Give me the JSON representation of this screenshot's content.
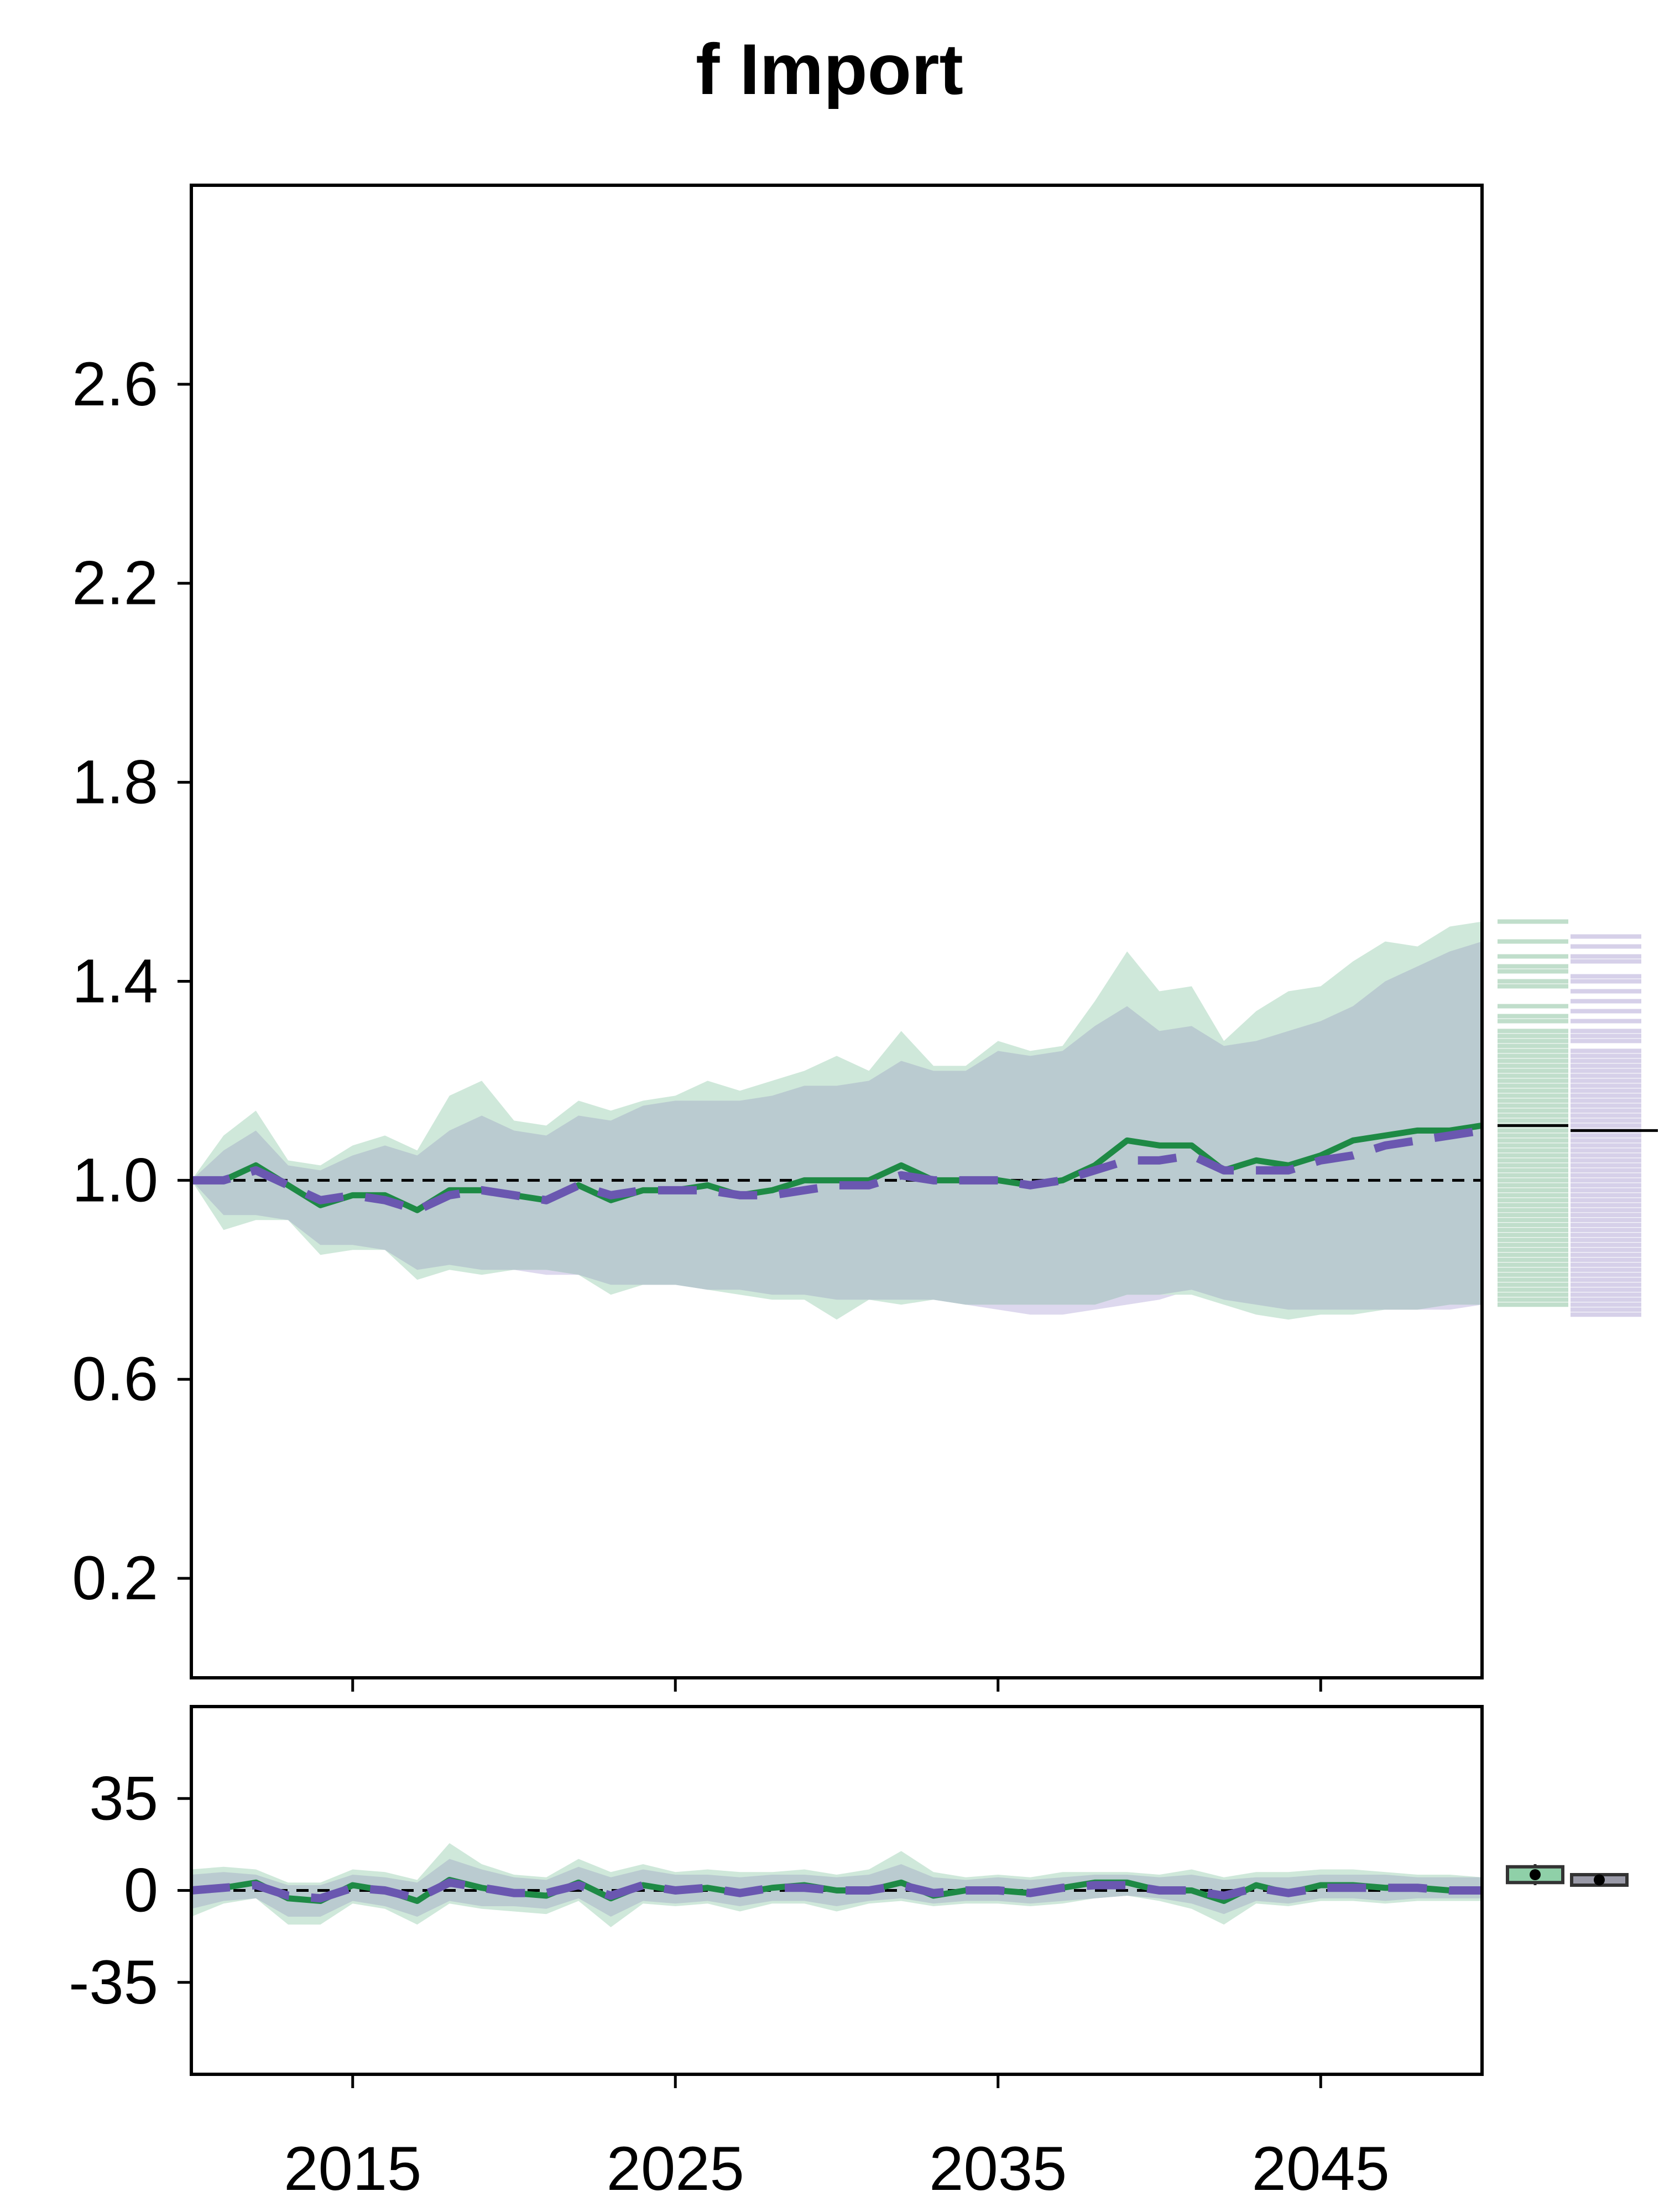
{
  "title": "f Import",
  "colors": {
    "green_line": "#1e8a45",
    "green_band": "#cfe8da",
    "purple_line": "#6a57b0",
    "purple_band": "#ddd8ee",
    "overlap_band": "#bacbd0",
    "axis": "#000000"
  },
  "chart_data": [
    {
      "type": "line",
      "panel": "main",
      "title": "f Import",
      "xlabel": "",
      "ylabel": "",
      "xlim": [
        2010,
        2050
      ],
      "ylim": [
        0.0,
        3.0
      ],
      "yticks": [
        0.2,
        0.6,
        1.0,
        1.4,
        1.8,
        2.2,
        2.6
      ],
      "ytick_labels": [
        "0.2",
        "0.6",
        "1.0",
        "1.4",
        "1.8",
        "2.2",
        "2.6"
      ],
      "xticks": [
        2015,
        2025,
        2035,
        2045
      ],
      "xtick_labels": [
        "2015",
        "2025",
        "2035",
        "2045"
      ],
      "reference_line": 1.0,
      "grid": false,
      "x": [
        2010,
        2011,
        2012,
        2013,
        2014,
        2015,
        2016,
        2017,
        2018,
        2019,
        2020,
        2021,
        2022,
        2023,
        2024,
        2025,
        2026,
        2027,
        2028,
        2029,
        2030,
        2031,
        2032,
        2033,
        2034,
        2035,
        2036,
        2037,
        2038,
        2039,
        2040,
        2041,
        2042,
        2043,
        2044,
        2045,
        2046,
        2047,
        2048,
        2049,
        2050
      ],
      "series": [
        {
          "style": "solid",
          "color": "green",
          "values": [
            1.0,
            1.0,
            1.03,
            0.99,
            0.95,
            0.97,
            0.97,
            0.94,
            0.98,
            0.98,
            0.97,
            0.96,
            0.99,
            0.96,
            0.98,
            0.98,
            0.99,
            0.97,
            0.98,
            1.0,
            1.0,
            1.0,
            1.03,
            1.0,
            1.0,
            1.0,
            0.99,
            1.0,
            1.03,
            1.08,
            1.07,
            1.07,
            1.02,
            1.04,
            1.03,
            1.05,
            1.08,
            1.09,
            1.1,
            1.1,
            1.11
          ],
          "band_upper": [
            1.0,
            1.09,
            1.14,
            1.04,
            1.03,
            1.07,
            1.09,
            1.06,
            1.17,
            1.2,
            1.12,
            1.11,
            1.16,
            1.14,
            1.16,
            1.17,
            1.2,
            1.18,
            1.2,
            1.22,
            1.25,
            1.22,
            1.3,
            1.23,
            1.23,
            1.28,
            1.26,
            1.27,
            1.36,
            1.46,
            1.38,
            1.39,
            1.28,
            1.34,
            1.38,
            1.39,
            1.44,
            1.48,
            1.47,
            1.51,
            1.52
          ],
          "band_lower": [
            1.0,
            0.9,
            0.92,
            0.92,
            0.85,
            0.86,
            0.86,
            0.8,
            0.82,
            0.81,
            0.82,
            0.82,
            0.81,
            0.77,
            0.79,
            0.79,
            0.78,
            0.77,
            0.76,
            0.76,
            0.72,
            0.76,
            0.75,
            0.76,
            0.75,
            0.75,
            0.75,
            0.75,
            0.75,
            0.77,
            0.77,
            0.77,
            0.75,
            0.73,
            0.72,
            0.73,
            0.73,
            0.74,
            0.74,
            0.75,
            0.75
          ],
          "spread_values": [
            1.52,
            1.48,
            1.45,
            1.43,
            1.42,
            1.4,
            1.39,
            1.35,
            1.33,
            1.32,
            1.3,
            1.29,
            1.28,
            1.27,
            1.26,
            1.25,
            1.24,
            1.23,
            1.22,
            1.21,
            1.2,
            1.19,
            1.18,
            1.17,
            1.16,
            1.15,
            1.14,
            1.13,
            1.12,
            1.11,
            1.1,
            1.09,
            1.08,
            1.07,
            1.06,
            1.05,
            1.04,
            1.03,
            1.02,
            1.01,
            1.0,
            0.99,
            0.98,
            0.97,
            0.96,
            0.95,
            0.94,
            0.93,
            0.92,
            0.91,
            0.9,
            0.89,
            0.88,
            0.87,
            0.86,
            0.85,
            0.84,
            0.83,
            0.82,
            0.81,
            0.8,
            0.79,
            0.78,
            0.77,
            0.76,
            0.75
          ],
          "spread_median": 1.11
        },
        {
          "style": "dashed",
          "color": "purple",
          "values": [
            1.0,
            1.0,
            1.02,
            0.99,
            0.96,
            0.97,
            0.96,
            0.94,
            0.97,
            0.98,
            0.97,
            0.96,
            0.99,
            0.97,
            0.98,
            0.98,
            0.98,
            0.97,
            0.97,
            0.98,
            0.99,
            0.99,
            1.01,
            1.0,
            1.0,
            1.0,
            0.99,
            1.0,
            1.02,
            1.04,
            1.04,
            1.05,
            1.02,
            1.02,
            1.02,
            1.04,
            1.05,
            1.07,
            1.08,
            1.09,
            1.1
          ],
          "band_upper": [
            1.0,
            1.06,
            1.1,
            1.03,
            1.02,
            1.05,
            1.07,
            1.05,
            1.1,
            1.13,
            1.1,
            1.09,
            1.13,
            1.12,
            1.15,
            1.16,
            1.16,
            1.16,
            1.17,
            1.19,
            1.19,
            1.2,
            1.24,
            1.22,
            1.22,
            1.26,
            1.25,
            1.26,
            1.31,
            1.35,
            1.3,
            1.31,
            1.27,
            1.28,
            1.3,
            1.32,
            1.35,
            1.4,
            1.43,
            1.46,
            1.48
          ],
          "band_lower": [
            1.0,
            0.93,
            0.93,
            0.92,
            0.87,
            0.87,
            0.86,
            0.82,
            0.83,
            0.82,
            0.82,
            0.81,
            0.81,
            0.79,
            0.79,
            0.79,
            0.78,
            0.78,
            0.77,
            0.77,
            0.76,
            0.76,
            0.76,
            0.76,
            0.75,
            0.74,
            0.73,
            0.73,
            0.74,
            0.75,
            0.76,
            0.78,
            0.76,
            0.75,
            0.74,
            0.74,
            0.74,
            0.74,
            0.74,
            0.74,
            0.75
          ],
          "spread_values": [
            1.49,
            1.47,
            1.45,
            1.44,
            1.41,
            1.4,
            1.38,
            1.36,
            1.34,
            1.32,
            1.3,
            1.29,
            1.28,
            1.26,
            1.25,
            1.24,
            1.23,
            1.22,
            1.21,
            1.2,
            1.19,
            1.18,
            1.17,
            1.16,
            1.15,
            1.14,
            1.13,
            1.12,
            1.11,
            1.1,
            1.09,
            1.08,
            1.07,
            1.06,
            1.05,
            1.04,
            1.03,
            1.02,
            1.01,
            1.0,
            0.99,
            0.98,
            0.97,
            0.96,
            0.95,
            0.94,
            0.93,
            0.92,
            0.91,
            0.9,
            0.89,
            0.88,
            0.87,
            0.86,
            0.85,
            0.84,
            0.83,
            0.82,
            0.81,
            0.8,
            0.79,
            0.78,
            0.77,
            0.76,
            0.75,
            0.74,
            0.73
          ],
          "spread_median": 1.1
        }
      ]
    },
    {
      "type": "line",
      "panel": "lower",
      "xlabel": "",
      "ylabel": "",
      "xlim": [
        2010,
        2050
      ],
      "ylim": [
        -70,
        70
      ],
      "yticks": [
        -35,
        0,
        35
      ],
      "ytick_labels": [
        "-35",
        "0",
        "35"
      ],
      "xticks": [
        2015,
        2025,
        2035,
        2045
      ],
      "xtick_labels": [
        "2015",
        "2025",
        "2035",
        "2045"
      ],
      "reference_line": 0,
      "x": [
        2010,
        2011,
        2012,
        2013,
        2014,
        2015,
        2016,
        2017,
        2018,
        2019,
        2020,
        2021,
        2022,
        2023,
        2024,
        2025,
        2026,
        2027,
        2028,
        2029,
        2030,
        2031,
        2032,
        2033,
        2034,
        2035,
        2036,
        2037,
        2038,
        2039,
        2040,
        2041,
        2042,
        2043,
        2044,
        2045,
        2046,
        2047,
        2048,
        2049,
        2050
      ],
      "series": [
        {
          "style": "solid",
          "color": "green",
          "values": [
            0,
            1,
            3,
            -3,
            -4,
            2,
            0,
            -4,
            4,
            1,
            -1,
            -2,
            3,
            -3,
            2,
            0,
            1,
            -1,
            1,
            2,
            0,
            0,
            3,
            -2,
            0,
            0,
            -1,
            1,
            3,
            3,
            0,
            0,
            -4,
            2,
            -1,
            2,
            2,
            1,
            1,
            0,
            0
          ],
          "band_upper": [
            8,
            9,
            8,
            3,
            3,
            8,
            7,
            4,
            18,
            10,
            6,
            5,
            12,
            7,
            10,
            7,
            8,
            7,
            7,
            8,
            6,
            8,
            15,
            7,
            5,
            6,
            5,
            7,
            7,
            7,
            6,
            8,
            5,
            7,
            7,
            8,
            8,
            7,
            6,
            6,
            5
          ],
          "band_lower": [
            -10,
            -5,
            -3,
            -13,
            -13,
            -5,
            -7,
            -13,
            -5,
            -7,
            -8,
            -9,
            -4,
            -14,
            -5,
            -6,
            -5,
            -8,
            -5,
            -5,
            -8,
            -5,
            -4,
            -6,
            -5,
            -5,
            -6,
            -5,
            -3,
            -2,
            -4,
            -7,
            -13,
            -5,
            -6,
            -4,
            -4,
            -5,
            -4,
            -4,
            -4
          ],
          "summary_box": {
            "q1": 3,
            "median": 6,
            "q3": 9,
            "whisker_low": 2,
            "whisker_high": 10
          }
        },
        {
          "style": "dashed",
          "color": "purple",
          "values": [
            0,
            1,
            2,
            -2,
            -3,
            1,
            0,
            -3,
            3,
            1,
            -1,
            -1,
            2,
            -2,
            2,
            0,
            1,
            -1,
            1,
            1,
            0,
            0,
            2,
            -1,
            0,
            0,
            -1,
            1,
            2,
            2,
            0,
            0,
            -2,
            1,
            -1,
            1,
            1,
            1,
            1,
            0,
            0
          ],
          "band_upper": [
            6,
            7,
            6,
            2,
            2,
            6,
            5,
            3,
            12,
            8,
            5,
            4,
            9,
            5,
            8,
            6,
            6,
            5,
            6,
            6,
            5,
            6,
            10,
            5,
            4,
            5,
            4,
            5,
            6,
            6,
            5,
            6,
            4,
            5,
            5,
            6,
            6,
            6,
            5,
            5,
            5
          ],
          "band_lower": [
            -7,
            -4,
            -3,
            -10,
            -10,
            -4,
            -6,
            -10,
            -4,
            -6,
            -6,
            -7,
            -3,
            -10,
            -4,
            -5,
            -4,
            -6,
            -4,
            -4,
            -6,
            -4,
            -3,
            -5,
            -4,
            -4,
            -5,
            -4,
            -3,
            -2,
            -3,
            -5,
            -9,
            -4,
            -5,
            -3,
            -3,
            -4,
            -3,
            -3,
            -3
          ],
          "summary_box": {
            "q1": 2,
            "median": 4,
            "q3": 6,
            "whisker_low": 2,
            "whisker_high": 6
          }
        }
      ]
    }
  ]
}
